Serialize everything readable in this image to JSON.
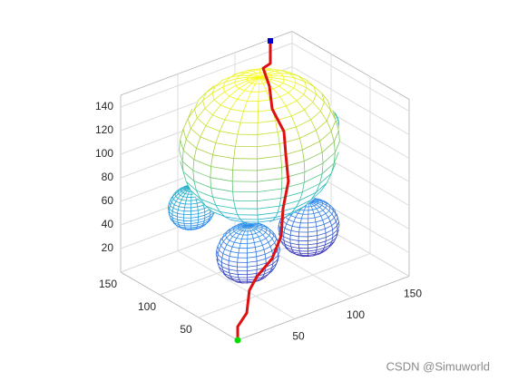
{
  "chart_data": {
    "type": "line3",
    "xlim": [
      0,
      150
    ],
    "ylim": [
      0,
      150
    ],
    "zlim": [
      0,
      150
    ],
    "xticks": [
      50,
      100,
      150
    ],
    "yticks": [
      50,
      100,
      150
    ],
    "zticks": [
      20,
      40,
      60,
      80,
      100,
      120,
      140
    ],
    "grid": true,
    "colormap": [
      "#3e26a8",
      "#2e87f0",
      "#1fbfb8",
      "#a0cb42",
      "#f9fb15"
    ],
    "spheres": [
      {
        "x": 60,
        "y": 60,
        "z": 120,
        "r": 58
      },
      {
        "x": 28,
        "y": 100,
        "z": 64,
        "r": 17
      },
      {
        "x": 50,
        "y": 60,
        "z": 33,
        "r": 23
      },
      {
        "x": 110,
        "y": 70,
        "z": 29,
        "r": 22
      },
      {
        "x": 140,
        "y": 100,
        "z": 93,
        "r": 14
      }
    ],
    "series": [
      {
        "color": "#dd1111",
        "x": [
          0,
          0,
          12,
          15.6,
          25.4,
          45.8,
          57.8,
          60.2,
          67.4,
          63.8,
          61.4,
          45.8,
          42.2,
          33.8,
          43.4,
          43.4
        ],
        "y": [
          0,
          0,
          6,
          7.8,
          12.7,
          22.9,
          28.9,
          30.1,
          33.7,
          31.9,
          30.7,
          22.9,
          21.1,
          16.9,
          21.7,
          21.7
        ],
        "z": [
          0,
          11.5,
          16.4,
          33.6,
          39.8,
          43.8,
          56.5,
          78.2,
          97.3,
          122.4,
          142.9,
          170.8,
          192,
          212,
          210.6,
          229.8
        ]
      }
    ],
    "start": {
      "x": 0,
      "y": 0,
      "z": 0,
      "color": "#00dd00"
    },
    "goal": {
      "x": 43.4,
      "y": 21.7,
      "z": 229.8,
      "color": "#0000cc"
    }
  },
  "watermark": "CSDN @Simuworld"
}
